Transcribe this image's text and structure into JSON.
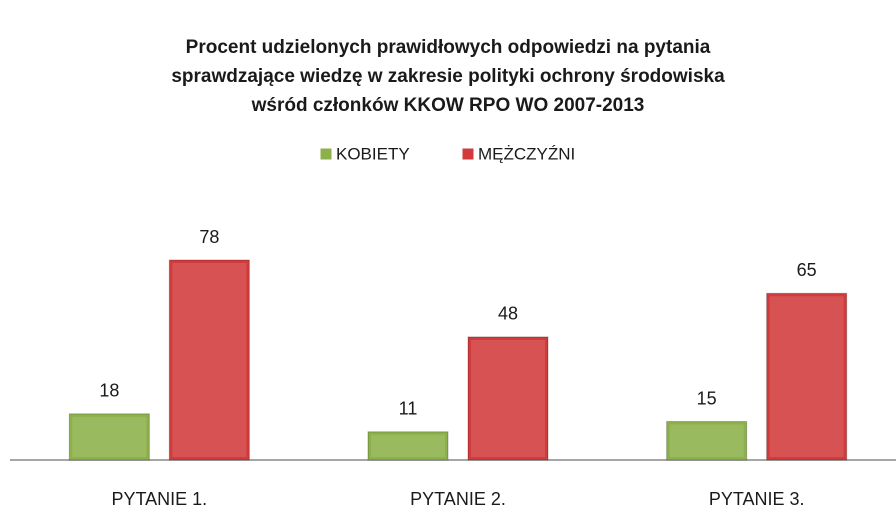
{
  "chart_data": {
    "type": "bar",
    "title": [
      "Procent udzielonych prawidłowych odpowiedzi na pytania",
      "sprawdzające wiedzę w zakresie polityki ochrony środowiska",
      "wśród członków KKOW RPO WO 2007-2013"
    ],
    "categories": [
      "PYTANIE 1.",
      "PYTANIE 2.",
      "PYTANIE 3."
    ],
    "series": [
      {
        "name": "KOBIETY",
        "color": "#8db14a",
        "values": [
          18,
          11,
          15
        ]
      },
      {
        "name": "MĘŻCZYŹNI",
        "color": "#d23b3b",
        "values": [
          78,
          48,
          65
        ]
      }
    ],
    "legend": "top"
  }
}
